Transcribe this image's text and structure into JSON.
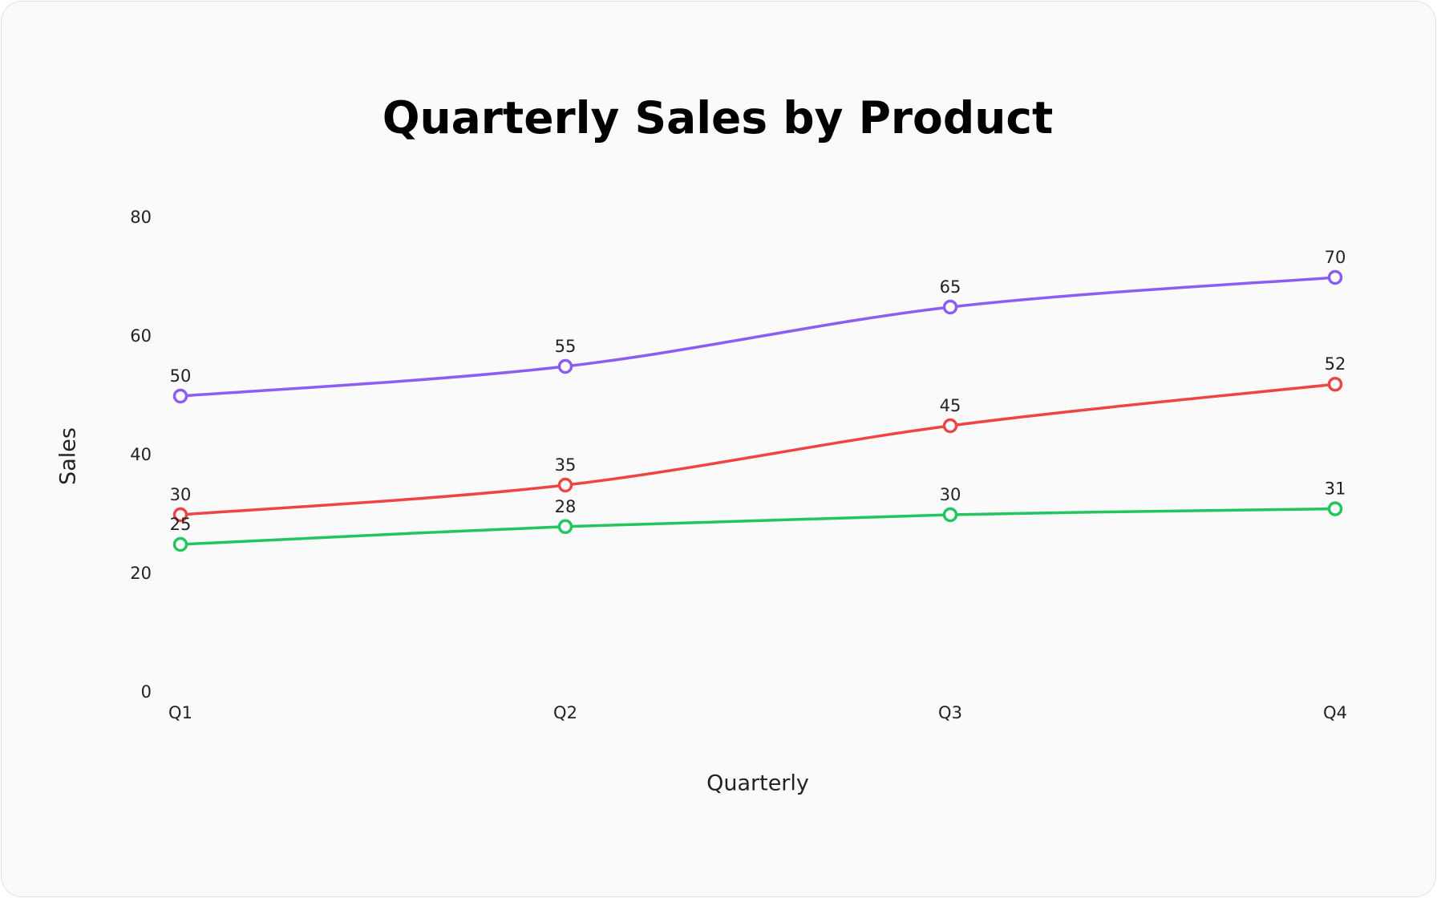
{
  "chart_data": {
    "type": "line",
    "title": "Quarterly Sales by Product",
    "x_label": "Quarterly",
    "y_label": "Sales",
    "categories": [
      "Q1",
      "Q2",
      "Q3",
      "Q4"
    ],
    "series": [
      {
        "color": "#8b5cf6",
        "values": [
          50,
          55,
          65,
          70
        ]
      },
      {
        "color": "#ef4444",
        "values": [
          30,
          35,
          45,
          52
        ]
      },
      {
        "color": "#22c55e",
        "values": [
          25,
          28,
          30,
          31
        ]
      }
    ],
    "ylim": [
      0,
      80
    ],
    "yticks": [
      0,
      20,
      40,
      60,
      80
    ],
    "grid": false
  }
}
